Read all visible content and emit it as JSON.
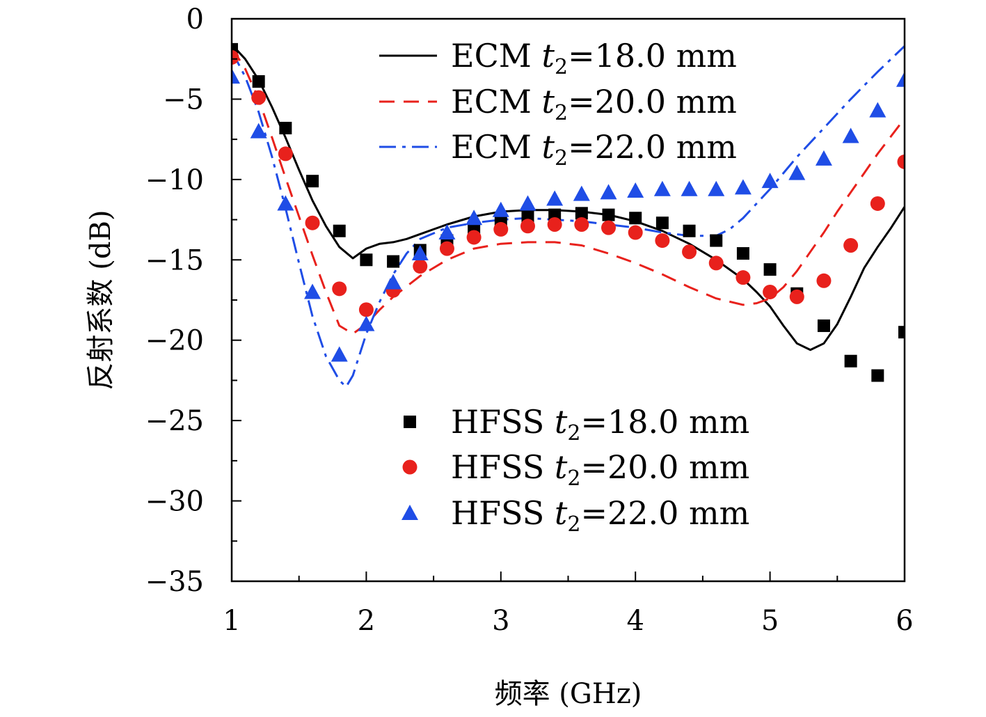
{
  "chart_data": {
    "type": "line",
    "xlabel": "频率 (GHz)",
    "ylabel": "反射系数 (dB)",
    "xlim": [
      1,
      6
    ],
    "ylim": [
      -35,
      0
    ],
    "x_ticks": [
      "1",
      "2",
      "3",
      "4",
      "5",
      "6"
    ],
    "y_ticks": [
      "0",
      "−5",
      "−10",
      "−15",
      "−20",
      "−25",
      "−30",
      "−35"
    ],
    "grid": false,
    "legend_placement": [
      "top-right",
      "bottom-right"
    ],
    "series": [
      {
        "name": "ECM t2=18.0 mm",
        "legend": {
          "prefix": "ECM ",
          "var": "t",
          "sub": "2",
          "suffix": "=18.0 mm"
        },
        "style": "solid",
        "color": "#000000",
        "x": [
          1.0,
          1.1,
          1.2,
          1.3,
          1.4,
          1.5,
          1.6,
          1.7,
          1.8,
          1.9,
          2.0,
          2.1,
          2.2,
          2.3,
          2.4,
          2.5,
          2.6,
          2.8,
          3.0,
          3.2,
          3.4,
          3.6,
          3.8,
          4.0,
          4.2,
          4.4,
          4.6,
          4.8,
          4.9,
          5.0,
          5.1,
          5.2,
          5.3,
          5.4,
          5.5,
          5.6,
          5.7,
          5.8,
          5.9,
          6.0
        ],
        "y": [
          -1.6,
          -2.5,
          -3.8,
          -5.5,
          -7.4,
          -9.4,
          -11.3,
          -12.9,
          -14.2,
          -14.9,
          -14.3,
          -14.0,
          -13.9,
          -13.7,
          -13.4,
          -13.1,
          -12.8,
          -12.3,
          -12.0,
          -11.9,
          -11.9,
          -12.0,
          -12.2,
          -12.6,
          -13.2,
          -14.0,
          -15.0,
          -16.2,
          -17.0,
          -17.9,
          -19.1,
          -20.2,
          -20.6,
          -20.2,
          -19.0,
          -17.3,
          -15.5,
          -14.2,
          -13.0,
          -11.7
        ]
      },
      {
        "name": "ECM t2=20.0 mm",
        "legend": {
          "prefix": "ECM ",
          "var": "t",
          "sub": "2",
          "suffix": "=20.0 mm"
        },
        "style": "dashed",
        "color": "#e8211c",
        "x": [
          1.0,
          1.1,
          1.2,
          1.3,
          1.4,
          1.5,
          1.6,
          1.7,
          1.8,
          1.9,
          2.0,
          2.1,
          2.2,
          2.4,
          2.6,
          2.8,
          3.0,
          3.2,
          3.4,
          3.6,
          3.8,
          4.0,
          4.2,
          4.4,
          4.6,
          4.8,
          4.9,
          5.0,
          5.1,
          5.2,
          5.3,
          5.4,
          5.5,
          5.6,
          5.7,
          5.8,
          5.9,
          6.0
        ],
        "y": [
          -1.8,
          -3.1,
          -5.0,
          -7.4,
          -9.9,
          -12.3,
          -14.7,
          -17.0,
          -19.1,
          -19.6,
          -19.0,
          -18.1,
          -17.3,
          -16.0,
          -15.0,
          -14.3,
          -14.0,
          -13.9,
          -13.9,
          -14.1,
          -14.6,
          -15.2,
          -15.9,
          -16.7,
          -17.4,
          -17.8,
          -17.7,
          -17.4,
          -16.7,
          -15.7,
          -14.5,
          -13.3,
          -12.0,
          -10.8,
          -9.6,
          -8.4,
          -7.3,
          -6.2
        ]
      },
      {
        "name": "ECM t2=22.0 mm",
        "legend": {
          "prefix": "ECM ",
          "var": "t",
          "sub": "2",
          "suffix": "=22.0 mm"
        },
        "style": "dashdot",
        "color": "#1f4de6",
        "x": [
          1.0,
          1.1,
          1.2,
          1.3,
          1.4,
          1.5,
          1.6,
          1.7,
          1.8,
          1.85,
          1.9,
          2.0,
          2.1,
          2.2,
          2.3,
          2.4,
          2.6,
          2.8,
          3.0,
          3.2,
          3.4,
          3.6,
          3.8,
          4.0,
          4.2,
          4.4,
          4.6,
          4.7,
          4.8,
          5.0,
          5.2,
          5.4,
          5.6,
          5.8,
          6.0
        ],
        "y": [
          -2.0,
          -3.6,
          -5.8,
          -8.6,
          -11.8,
          -15.2,
          -18.5,
          -21.0,
          -22.5,
          -22.9,
          -22.2,
          -19.6,
          -17.6,
          -15.9,
          -14.6,
          -13.7,
          -13.0,
          -12.7,
          -12.5,
          -12.4,
          -12.5,
          -12.6,
          -12.8,
          -13.0,
          -13.3,
          -13.5,
          -13.5,
          -13.1,
          -12.4,
          -10.6,
          -8.6,
          -6.8,
          -5.0,
          -3.3,
          -1.7
        ]
      },
      {
        "name": "HFSS t2=18.0 mm",
        "legend": {
          "prefix": "HFSS ",
          "var": "t",
          "sub": "2",
          "suffix": "=18.0 mm"
        },
        "marker": "square",
        "color": "#000000",
        "x": [
          1.0,
          1.2,
          1.4,
          1.6,
          1.8,
          2.0,
          2.2,
          2.4,
          2.6,
          2.8,
          3.0,
          3.2,
          3.4,
          3.6,
          3.8,
          4.0,
          4.2,
          4.4,
          4.6,
          4.8,
          5.0,
          5.2,
          5.4,
          5.6,
          5.8,
          6.0
        ],
        "y": [
          -1.9,
          -3.9,
          -6.8,
          -10.1,
          -13.2,
          -15.0,
          -15.1,
          -14.4,
          -13.8,
          -13.0,
          -12.7,
          -12.3,
          -12.2,
          -12.1,
          -12.2,
          -12.4,
          -12.7,
          -13.2,
          -13.8,
          -14.6,
          -15.6,
          -17.1,
          -19.1,
          -21.3,
          -22.2,
          -19.5
        ]
      },
      {
        "name": "HFSS t2=20.0 mm",
        "legend": {
          "prefix": "HFSS ",
          "var": "t",
          "sub": "2",
          "suffix": "=20.0 mm"
        },
        "marker": "circle",
        "color": "#e8211c",
        "x": [
          1.0,
          1.2,
          1.4,
          1.6,
          1.8,
          2.0,
          2.2,
          2.4,
          2.6,
          2.8,
          3.0,
          3.2,
          3.4,
          3.6,
          3.8,
          4.0,
          4.2,
          4.4,
          4.6,
          4.8,
          5.0,
          5.2,
          5.4,
          5.6,
          5.8,
          6.0
        ],
        "y": [
          -2.4,
          -4.9,
          -8.4,
          -12.7,
          -16.8,
          -18.1,
          -16.9,
          -15.4,
          -14.3,
          -13.6,
          -13.1,
          -12.9,
          -12.8,
          -12.8,
          -13.0,
          -13.3,
          -13.8,
          -14.5,
          -15.2,
          -16.1,
          -17.0,
          -17.3,
          -16.3,
          -14.1,
          -11.5,
          -8.9
        ]
      },
      {
        "name": "HFSS t2=22.0 mm",
        "legend": {
          "prefix": "HFSS ",
          "var": "t",
          "sub": "2",
          "suffix": "=22.0 mm"
        },
        "marker": "triangle",
        "color": "#1f4de6",
        "x": [
          1.0,
          1.2,
          1.4,
          1.6,
          1.8,
          2.0,
          2.2,
          2.4,
          2.6,
          2.8,
          3.0,
          3.2,
          3.4,
          3.6,
          3.8,
          4.0,
          4.2,
          4.4,
          4.6,
          4.8,
          5.0,
          5.2,
          5.4,
          5.6,
          5.8,
          6.0
        ],
        "y": [
          -3.6,
          -7.0,
          -11.5,
          -17.0,
          -20.9,
          -19.0,
          -16.4,
          -14.6,
          -13.3,
          -12.4,
          -11.9,
          -11.5,
          -11.2,
          -10.9,
          -10.8,
          -10.7,
          -10.6,
          -10.6,
          -10.6,
          -10.5,
          -10.1,
          -9.6,
          -8.7,
          -7.3,
          -5.7,
          -3.8
        ]
      }
    ]
  }
}
